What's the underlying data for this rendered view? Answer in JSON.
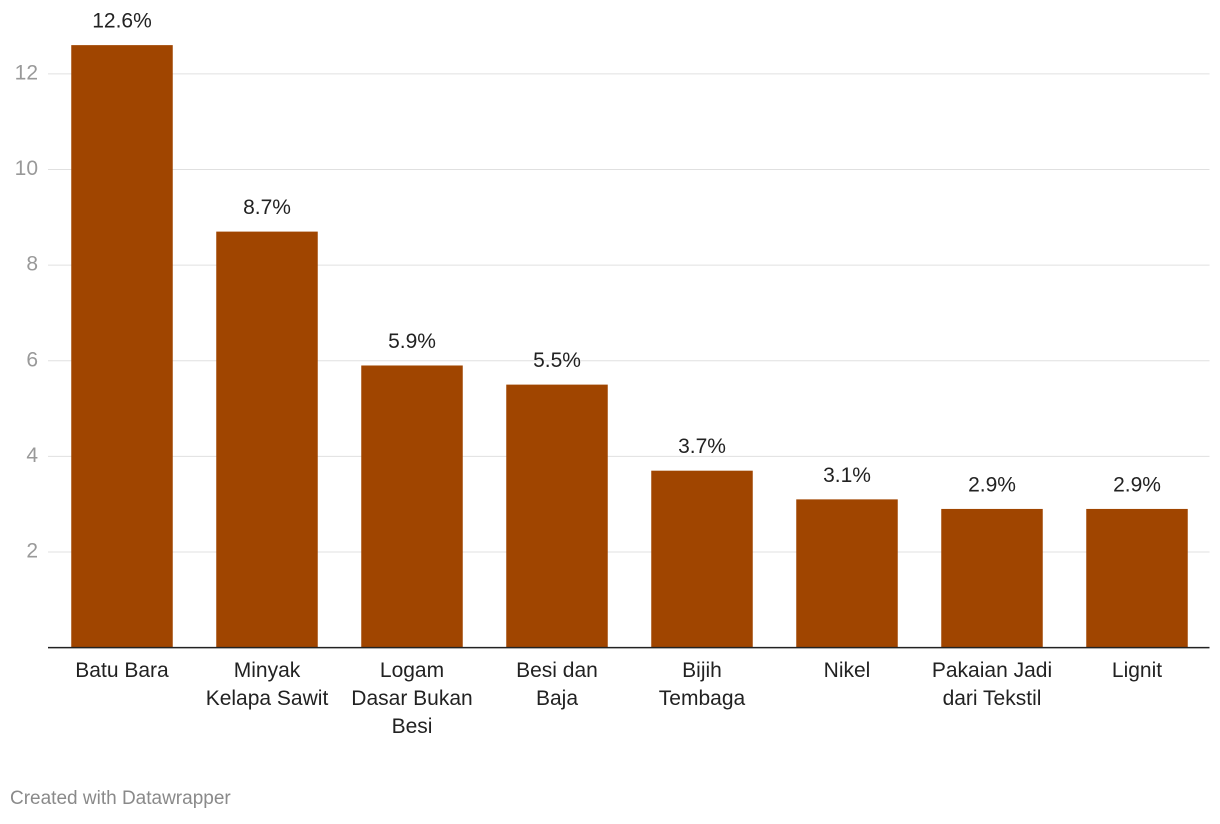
{
  "chart_data": {
    "type": "bar",
    "categories": [
      "Batu Bara",
      "Minyak Kelapa Sawit",
      "Logam Dasar Bukan Besi",
      "Besi dan Baja",
      "Bijih Tembaga",
      "Nikel",
      "Pakaian Jadi dari Tekstil",
      "Lignit"
    ],
    "values": [
      12.6,
      8.7,
      5.9,
      5.5,
      3.7,
      3.1,
      2.9,
      2.9
    ],
    "value_labels": [
      "12.6%",
      "8.7%",
      "5.9%",
      "5.5%",
      "3.7%",
      "3.1%",
      "2.9%",
      "2.9%"
    ],
    "color": "#a04500",
    "ylim": [
      0,
      13
    ],
    "yticks": [
      2,
      4,
      6,
      8,
      10,
      12
    ],
    "grid": true
  },
  "credit": "Created with Datawrapper"
}
